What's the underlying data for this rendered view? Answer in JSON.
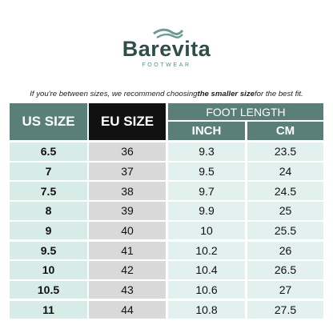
{
  "header": {
    "brand": "Barevita",
    "tagline": "FOOTWEAR"
  },
  "note": {
    "before": "If you're between sizes, we recommend choosing ",
    "bold": "the smaller size",
    "after": " for the best fit."
  },
  "table": {
    "columns": {
      "us": "US SIZE",
      "eu": "EU SIZE",
      "group": "FOOT LENGTH",
      "inch": "INCH",
      "cm": "CM"
    },
    "rows": [
      [
        "6.5",
        "36",
        "9.3",
        "23.5"
      ],
      [
        "7",
        "37",
        "9.5",
        "24"
      ],
      [
        "7.5",
        "38",
        "9.7",
        "24.5"
      ],
      [
        "8",
        "39",
        "9.9",
        "25"
      ],
      [
        "9",
        "40",
        "10",
        "25.5"
      ],
      [
        "9.5",
        "41",
        "10.2",
        "26"
      ],
      [
        "10",
        "42",
        "10.4",
        "26.5"
      ],
      [
        "10.5",
        "43",
        "10.6",
        "27"
      ],
      [
        "11",
        "44",
        "10.8",
        "27.5"
      ]
    ]
  }
}
